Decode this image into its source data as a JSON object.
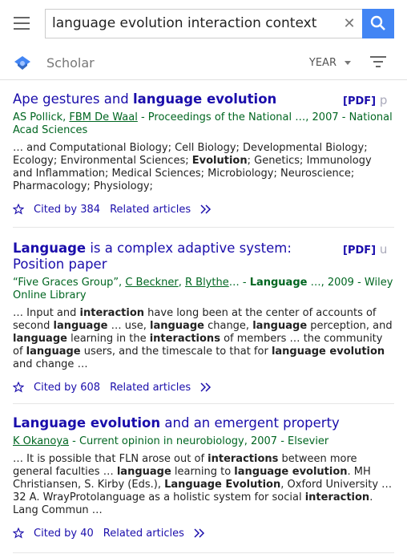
{
  "search": {
    "query": "language evolution interaction context"
  },
  "header": {
    "brand": "Scholar",
    "year_label": "YEAR"
  },
  "results": [
    {
      "title_plain_1": "Ape gestures and ",
      "title_bold_1": "language evolution",
      "title_plain_2": "",
      "pdf_label": "[PDF]",
      "pdf_fade": " p",
      "authors_html_parts": [
        "AS Pollick",
        "FBM De Waal",
        " - Proceedings of the National …, 2007 - National Acad Sciences"
      ],
      "snippet_parts": [
        "… and Computational Biology; Cell Biology; Developmental Biology; Ecology; Environmental Sciences; ",
        "Evolution",
        "; Genetics; Immunology and Inflammation; Medical Sciences; Microbiology; Neuroscience; Pharmacology; Physiology;"
      ],
      "cited_by": "Cited by 384",
      "related": "Related articles"
    },
    {
      "title_bold_1": "Language",
      "title_plain_2": " is a complex adaptive system: Position paper",
      "pdf_label": "[PDF]",
      "pdf_fade": " u",
      "authors_text": "“Five Graces Group”, ",
      "author_links": [
        "C Beckner",
        "R Blythe"
      ],
      "authors_tail_1": "… - ",
      "authors_bold": "Language",
      "authors_tail_2": " …, 2009 - Wiley Online Library",
      "cited_by": "Cited by 608",
      "related": "Related articles"
    },
    {
      "title_bold_1": "Language evolution",
      "title_plain_2": " and an emergent property",
      "author_link": "K Okanoya",
      "authors_tail": " - Current opinion in neurobiology, 2007 - Elsevier",
      "cited_by": "Cited by 40",
      "related": "Related articles"
    }
  ]
}
